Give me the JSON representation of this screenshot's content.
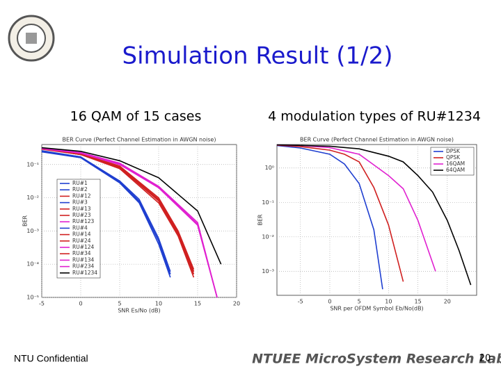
{
  "slide": {
    "title": "Simulation Result (1/2)",
    "subtitle_left": "16 QAM of 15 cases",
    "subtitle_right": "4 modulation types of RU#1234",
    "footer": "NTU Confidential",
    "logo_text": "NTUEE MicroSystem Research Lab.",
    "page_number": "20"
  },
  "chart_data": [
    {
      "type": "line",
      "title": "BER Curve (Perfect Channel Estimation in AWGN noise)",
      "x_label": "SNR Es/No (dB)",
      "y_label": "BER",
      "log_y": true,
      "grid": true,
      "legend": "center left",
      "xlim": [
        -5,
        20
      ],
      "xticks": [
        -5,
        0,
        5,
        10,
        15,
        20
      ],
      "ylim": [
        1e-05,
        0.4
      ],
      "yticks": [
        {
          "value": 0.1,
          "label": "10⁻¹"
        },
        {
          "value": 0.01,
          "label": "10⁻²"
        },
        {
          "value": 0.001,
          "label": "10⁻³"
        },
        {
          "value": 0.0001,
          "label": "10⁻⁴"
        },
        {
          "value": 1e-05,
          "label": "10⁻⁵"
        }
      ],
      "series": [
        {
          "name": "RU#1",
          "color": "#1f3fd0",
          "x": [
            -5,
            0,
            5,
            7.5,
            10,
            11.5
          ],
          "values": [
            0.25,
            0.17,
            0.03,
            0.008,
            0.0005,
            5e-05
          ]
        },
        {
          "name": "RU#2",
          "color": "#1f3fd0",
          "x": [
            -5,
            0,
            5,
            7.5,
            10,
            11.5
          ],
          "values": [
            0.24,
            0.16,
            0.028,
            0.007,
            0.0004,
            4e-05
          ]
        },
        {
          "name": "RU#12",
          "color": "#d02020",
          "x": [
            -5,
            0,
            5,
            10,
            12.5,
            14.5
          ],
          "values": [
            0.3,
            0.2,
            0.08,
            0.008,
            0.0008,
            5e-05
          ]
        },
        {
          "name": "RU#3",
          "color": "#1f3fd0",
          "x": [
            -5,
            0,
            5,
            7.5,
            10,
            11.5
          ],
          "values": [
            0.26,
            0.17,
            0.032,
            0.009,
            0.0006,
            6e-05
          ]
        },
        {
          "name": "RU#13",
          "color": "#d02020",
          "x": [
            -5,
            0,
            5,
            10,
            12.5,
            14.5
          ],
          "values": [
            0.29,
            0.2,
            0.075,
            0.007,
            0.0007,
            4e-05
          ]
        },
        {
          "name": "RU#23",
          "color": "#d02020",
          "x": [
            -5,
            0,
            5,
            10,
            12.5,
            14.5
          ],
          "values": [
            0.3,
            0.21,
            0.085,
            0.009,
            0.0009,
            6e-05
          ]
        },
        {
          "name": "RU#123",
          "color": "#e020d0",
          "x": [
            -5,
            0,
            5,
            10,
            15,
            17.5
          ],
          "values": [
            0.3,
            0.22,
            0.1,
            0.02,
            0.0015,
            1e-05
          ]
        },
        {
          "name": "RU#4",
          "color": "#1f3fd0",
          "x": [
            -5,
            0,
            5,
            7.5,
            10,
            11.5
          ],
          "values": [
            0.25,
            0.16,
            0.03,
            0.0075,
            0.0005,
            5e-05
          ]
        },
        {
          "name": "RU#14",
          "color": "#d02020",
          "x": [
            -5,
            0,
            5,
            10,
            12.5,
            14.5
          ],
          "values": [
            0.31,
            0.21,
            0.09,
            0.01,
            0.001,
            7e-05
          ]
        },
        {
          "name": "RU#24",
          "color": "#d02020",
          "x": [
            -5,
            0,
            5,
            10,
            12.5,
            14.5
          ],
          "values": [
            0.3,
            0.2,
            0.08,
            0.0085,
            0.00085,
            5e-05
          ]
        },
        {
          "name": "RU#124",
          "color": "#e020d0",
          "x": [
            -5,
            0,
            5,
            10,
            15,
            17.5
          ],
          "values": [
            0.31,
            0.23,
            0.11,
            0.022,
            0.0018,
            1e-05
          ]
        },
        {
          "name": "RU#34",
          "color": "#d02020",
          "x": [
            -5,
            0,
            5,
            10,
            12.5,
            14.5
          ],
          "values": [
            0.3,
            0.2,
            0.082,
            0.0088,
            0.0009,
            6e-05
          ]
        },
        {
          "name": "RU#134",
          "color": "#e020d0",
          "x": [
            -5,
            0,
            5,
            10,
            15,
            17.5
          ],
          "values": [
            0.3,
            0.22,
            0.1,
            0.021,
            0.0016,
            1e-05
          ]
        },
        {
          "name": "RU#234",
          "color": "#e020d0",
          "x": [
            -5,
            0,
            5,
            10,
            15,
            17.5
          ],
          "values": [
            0.31,
            0.22,
            0.105,
            0.02,
            0.0015,
            1e-05
          ]
        },
        {
          "name": "RU#1234",
          "color": "#000000",
          "x": [
            -5,
            0,
            5,
            10,
            15,
            18
          ],
          "values": [
            0.32,
            0.25,
            0.13,
            0.04,
            0.004,
            0.0001
          ]
        }
      ]
    },
    {
      "type": "line",
      "title": "BER Curve (Perfect Channel Estimation in AWGN noise)",
      "x_label": "SNR per OFDM Symbol Eb/No(dB)",
      "y_label": "BER",
      "log_y": true,
      "grid": true,
      "legend": "upper right",
      "xlim": [
        -9,
        25
      ],
      "xticks": [
        -5,
        0,
        5,
        10,
        15,
        20
      ],
      "ylim": [
        0.0002,
        4.8
      ],
      "yticks": [
        {
          "value": 1,
          "label": "10⁰"
        },
        {
          "value": 0.1,
          "label": "10⁻¹"
        },
        {
          "value": 0.01,
          "label": "10⁻²"
        },
        {
          "value": 0.001,
          "label": "10⁻³"
        }
      ],
      "series": [
        {
          "name": "DPSK",
          "color": "#1f3fd0",
          "x": [
            -9,
            -5,
            0,
            2.5,
            5,
            7.5,
            9
          ],
          "values": [
            4.5,
            3.8,
            2.5,
            1.3,
            0.35,
            0.016,
            0.0003
          ]
        },
        {
          "name": "QPSK",
          "color": "#d02020",
          "x": [
            -9,
            -5,
            0,
            2.5,
            5,
            7.5,
            10,
            12.5
          ],
          "values": [
            4.6,
            4.2,
            3.3,
            2.5,
            1.5,
            0.27,
            0.022,
            0.0005
          ]
        },
        {
          "name": "16QAM",
          "color": "#e020d0",
          "x": [
            -9,
            -5,
            0,
            5,
            10,
            12.5,
            15,
            18
          ],
          "values": [
            4.7,
            4.5,
            3.9,
            2.5,
            0.6,
            0.25,
            0.03,
            0.001
          ]
        },
        {
          "name": "64QAM",
          "color": "#000000",
          "x": [
            -9,
            0,
            5,
            10,
            12.5,
            15,
            17.5,
            20,
            22,
            24
          ],
          "values": [
            4.7,
            4.3,
            3.6,
            2.2,
            1.5,
            0.6,
            0.2,
            0.03,
            0.004,
            0.0004
          ]
        }
      ]
    }
  ]
}
